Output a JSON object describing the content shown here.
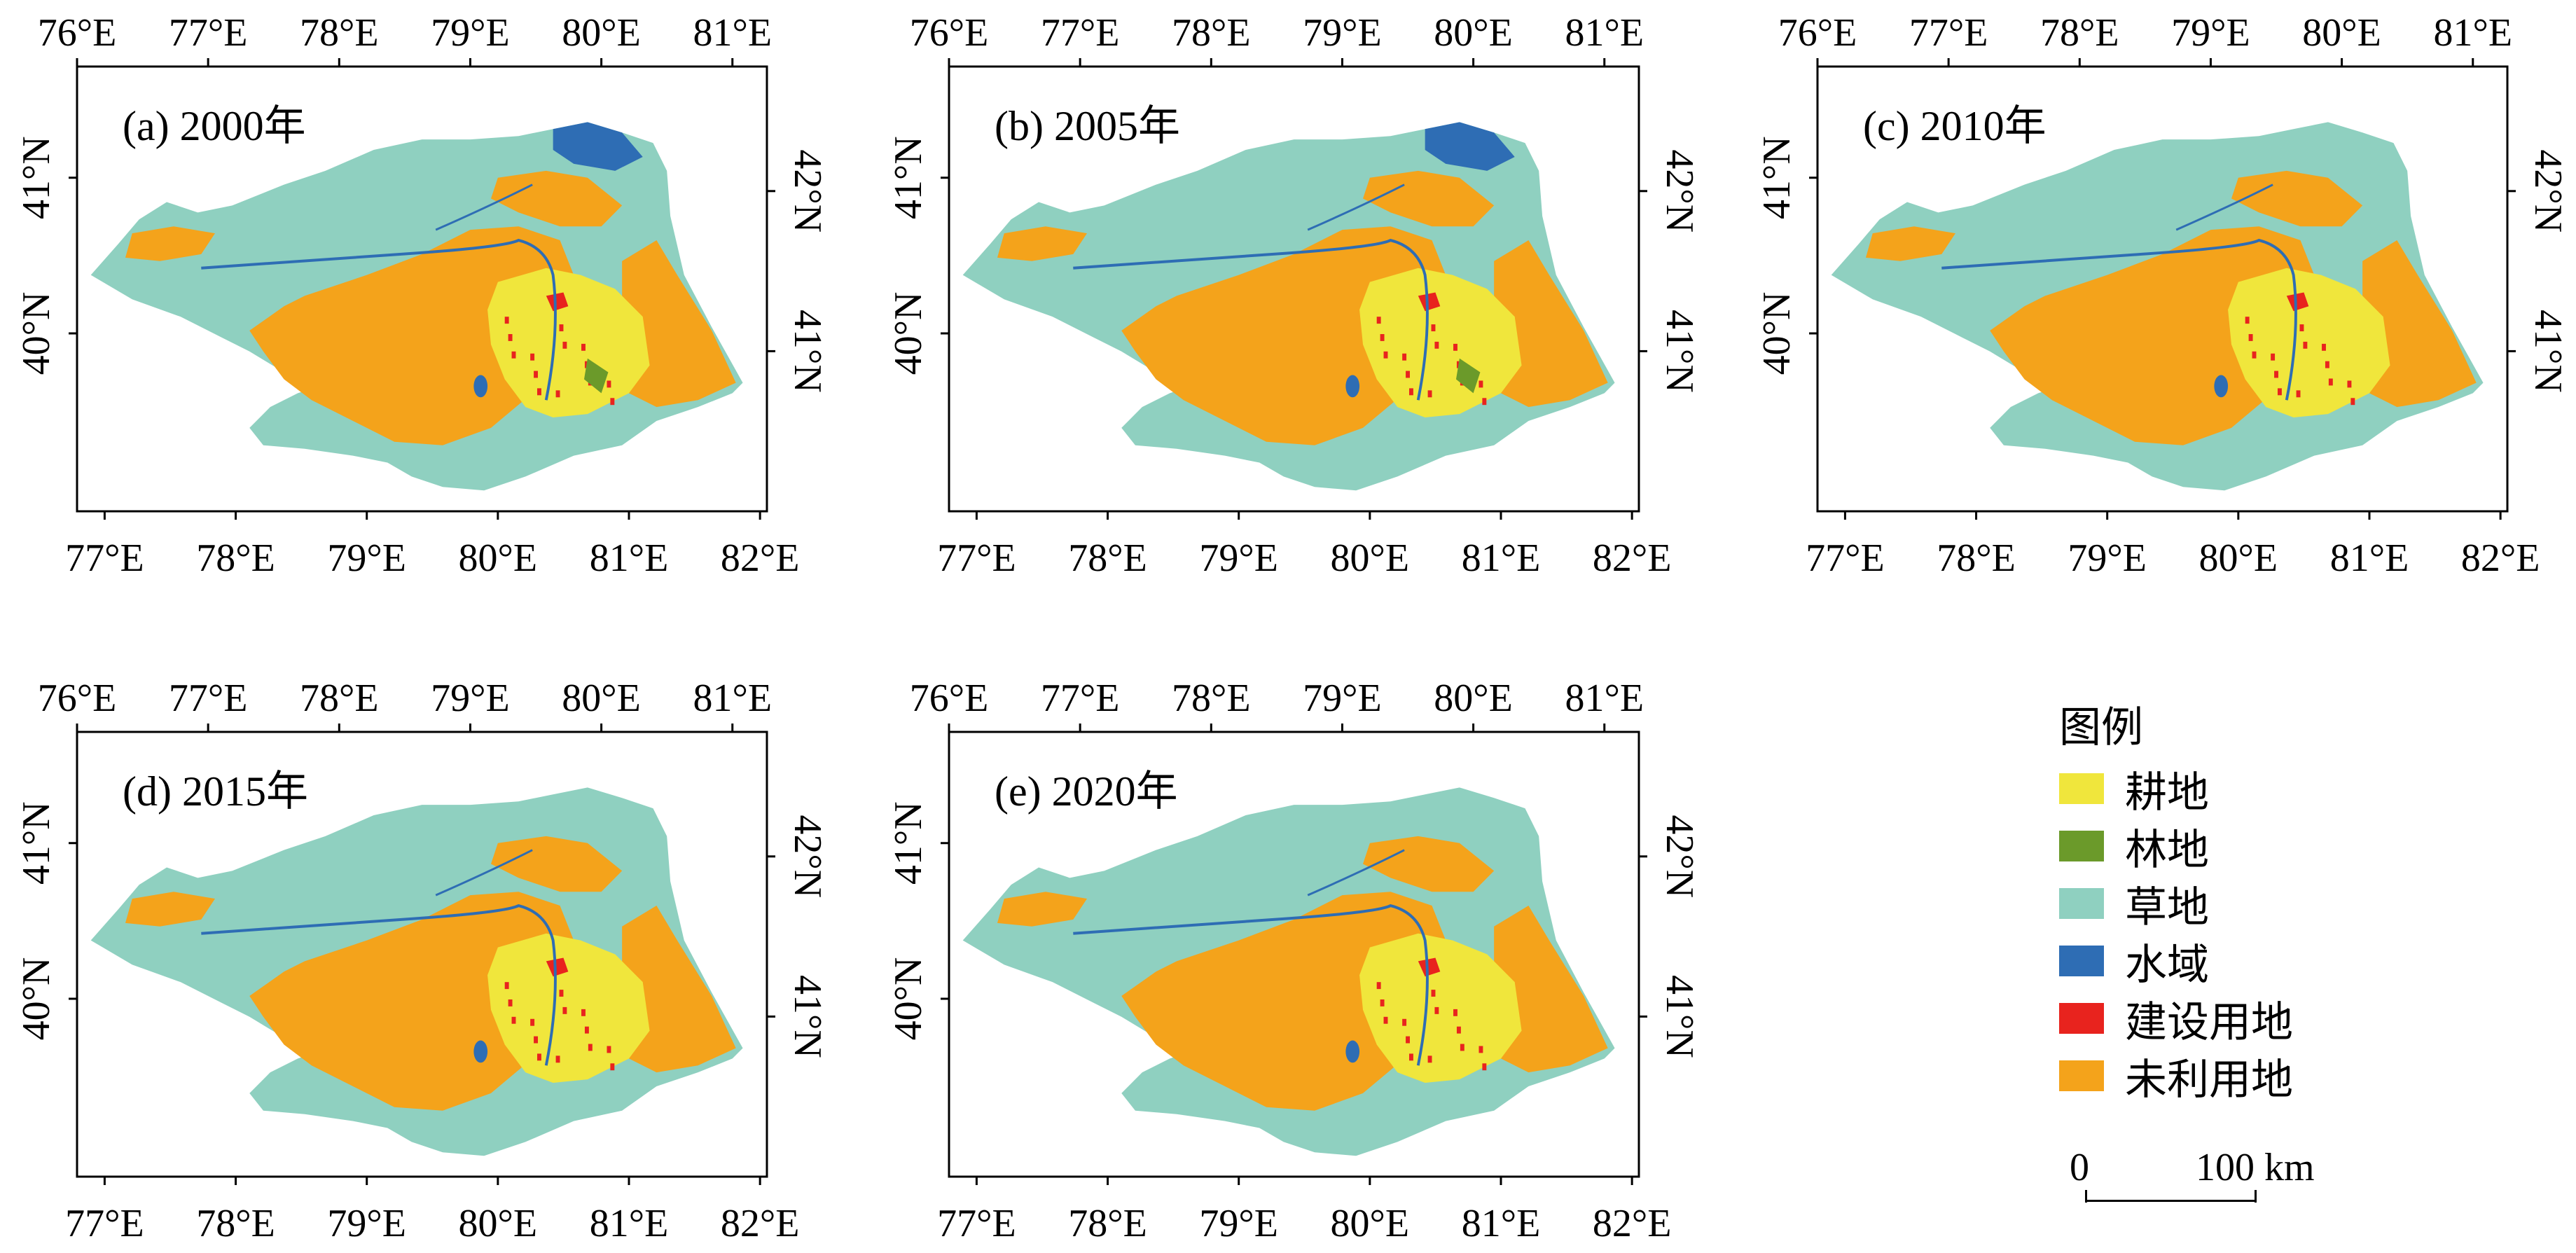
{
  "panels": [
    {
      "label": "(a) 2000年"
    },
    {
      "label": "(b) 2005年"
    },
    {
      "label": "(c) 2010年"
    },
    {
      "label": "(d) 2015年"
    },
    {
      "label": "(e) 2020年"
    }
  ],
  "axes": {
    "top_lon_labels": [
      "76°E",
      "77°E",
      "78°E",
      "79°E",
      "80°E",
      "81°E"
    ],
    "bottom_lon_labels": [
      "77°E",
      "78°E",
      "79°E",
      "80°E",
      "81°E",
      "82°E"
    ],
    "left_lat_labels": [
      "41°N",
      "40°N"
    ],
    "right_lat_labels": [
      "42°N",
      "41°N"
    ]
  },
  "legend": {
    "title": "图例",
    "items": [
      {
        "label": "耕地",
        "color": "#f0e63c"
      },
      {
        "label": "林地",
        "color": "#6b9a2a"
      },
      {
        "label": "草地",
        "color": "#8fd0c0"
      },
      {
        "label": "水域",
        "color": "#2e6db4"
      },
      {
        "label": "建设用地",
        "color": "#e8231e"
      },
      {
        "label": "未利用地",
        "color": "#f4a31b"
      }
    ]
  },
  "scalebar": {
    "zero": "0",
    "max": "100 km"
  }
}
